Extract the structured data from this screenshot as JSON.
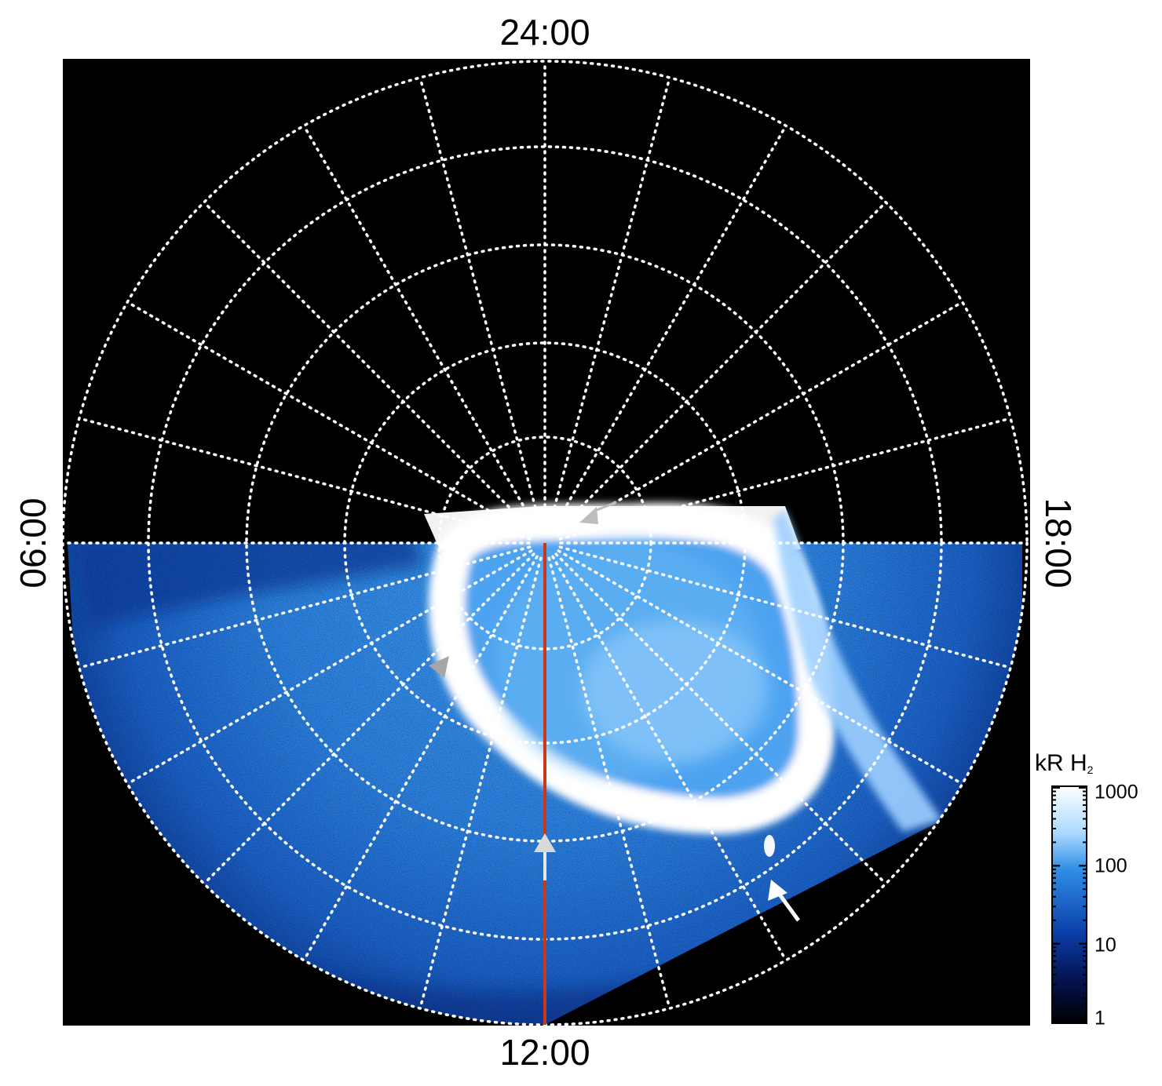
{
  "local_time_labels": {
    "top": "24:00",
    "bottom": "12:00",
    "left": "06:00",
    "right": "18:00"
  },
  "colorbar": {
    "unit_main": "kR H",
    "unit_sub": "2",
    "scale": "log",
    "ticks": [
      "1000",
      "100",
      "10",
      "1"
    ],
    "colors": [
      "#ffffff",
      "#a9d8ff",
      "#2f8fe6",
      "#0a3ea8",
      "#04124f",
      "#000000"
    ]
  },
  "colors": {
    "background": "#000000",
    "grid": "#ffffff",
    "aurora_bright": "#ffffff",
    "aurora_mid": "#2f86e0",
    "aurora_dark": "#0a3a9c",
    "meridian_line": "#c8381a",
    "arrow_gray": "#bdbdbd",
    "arrow_white": "#ffffff"
  },
  "icons": [
    "arrow-gray-up",
    "arrow-gray-down",
    "arrow-gray-left",
    "arrow-white-up-left"
  ]
}
